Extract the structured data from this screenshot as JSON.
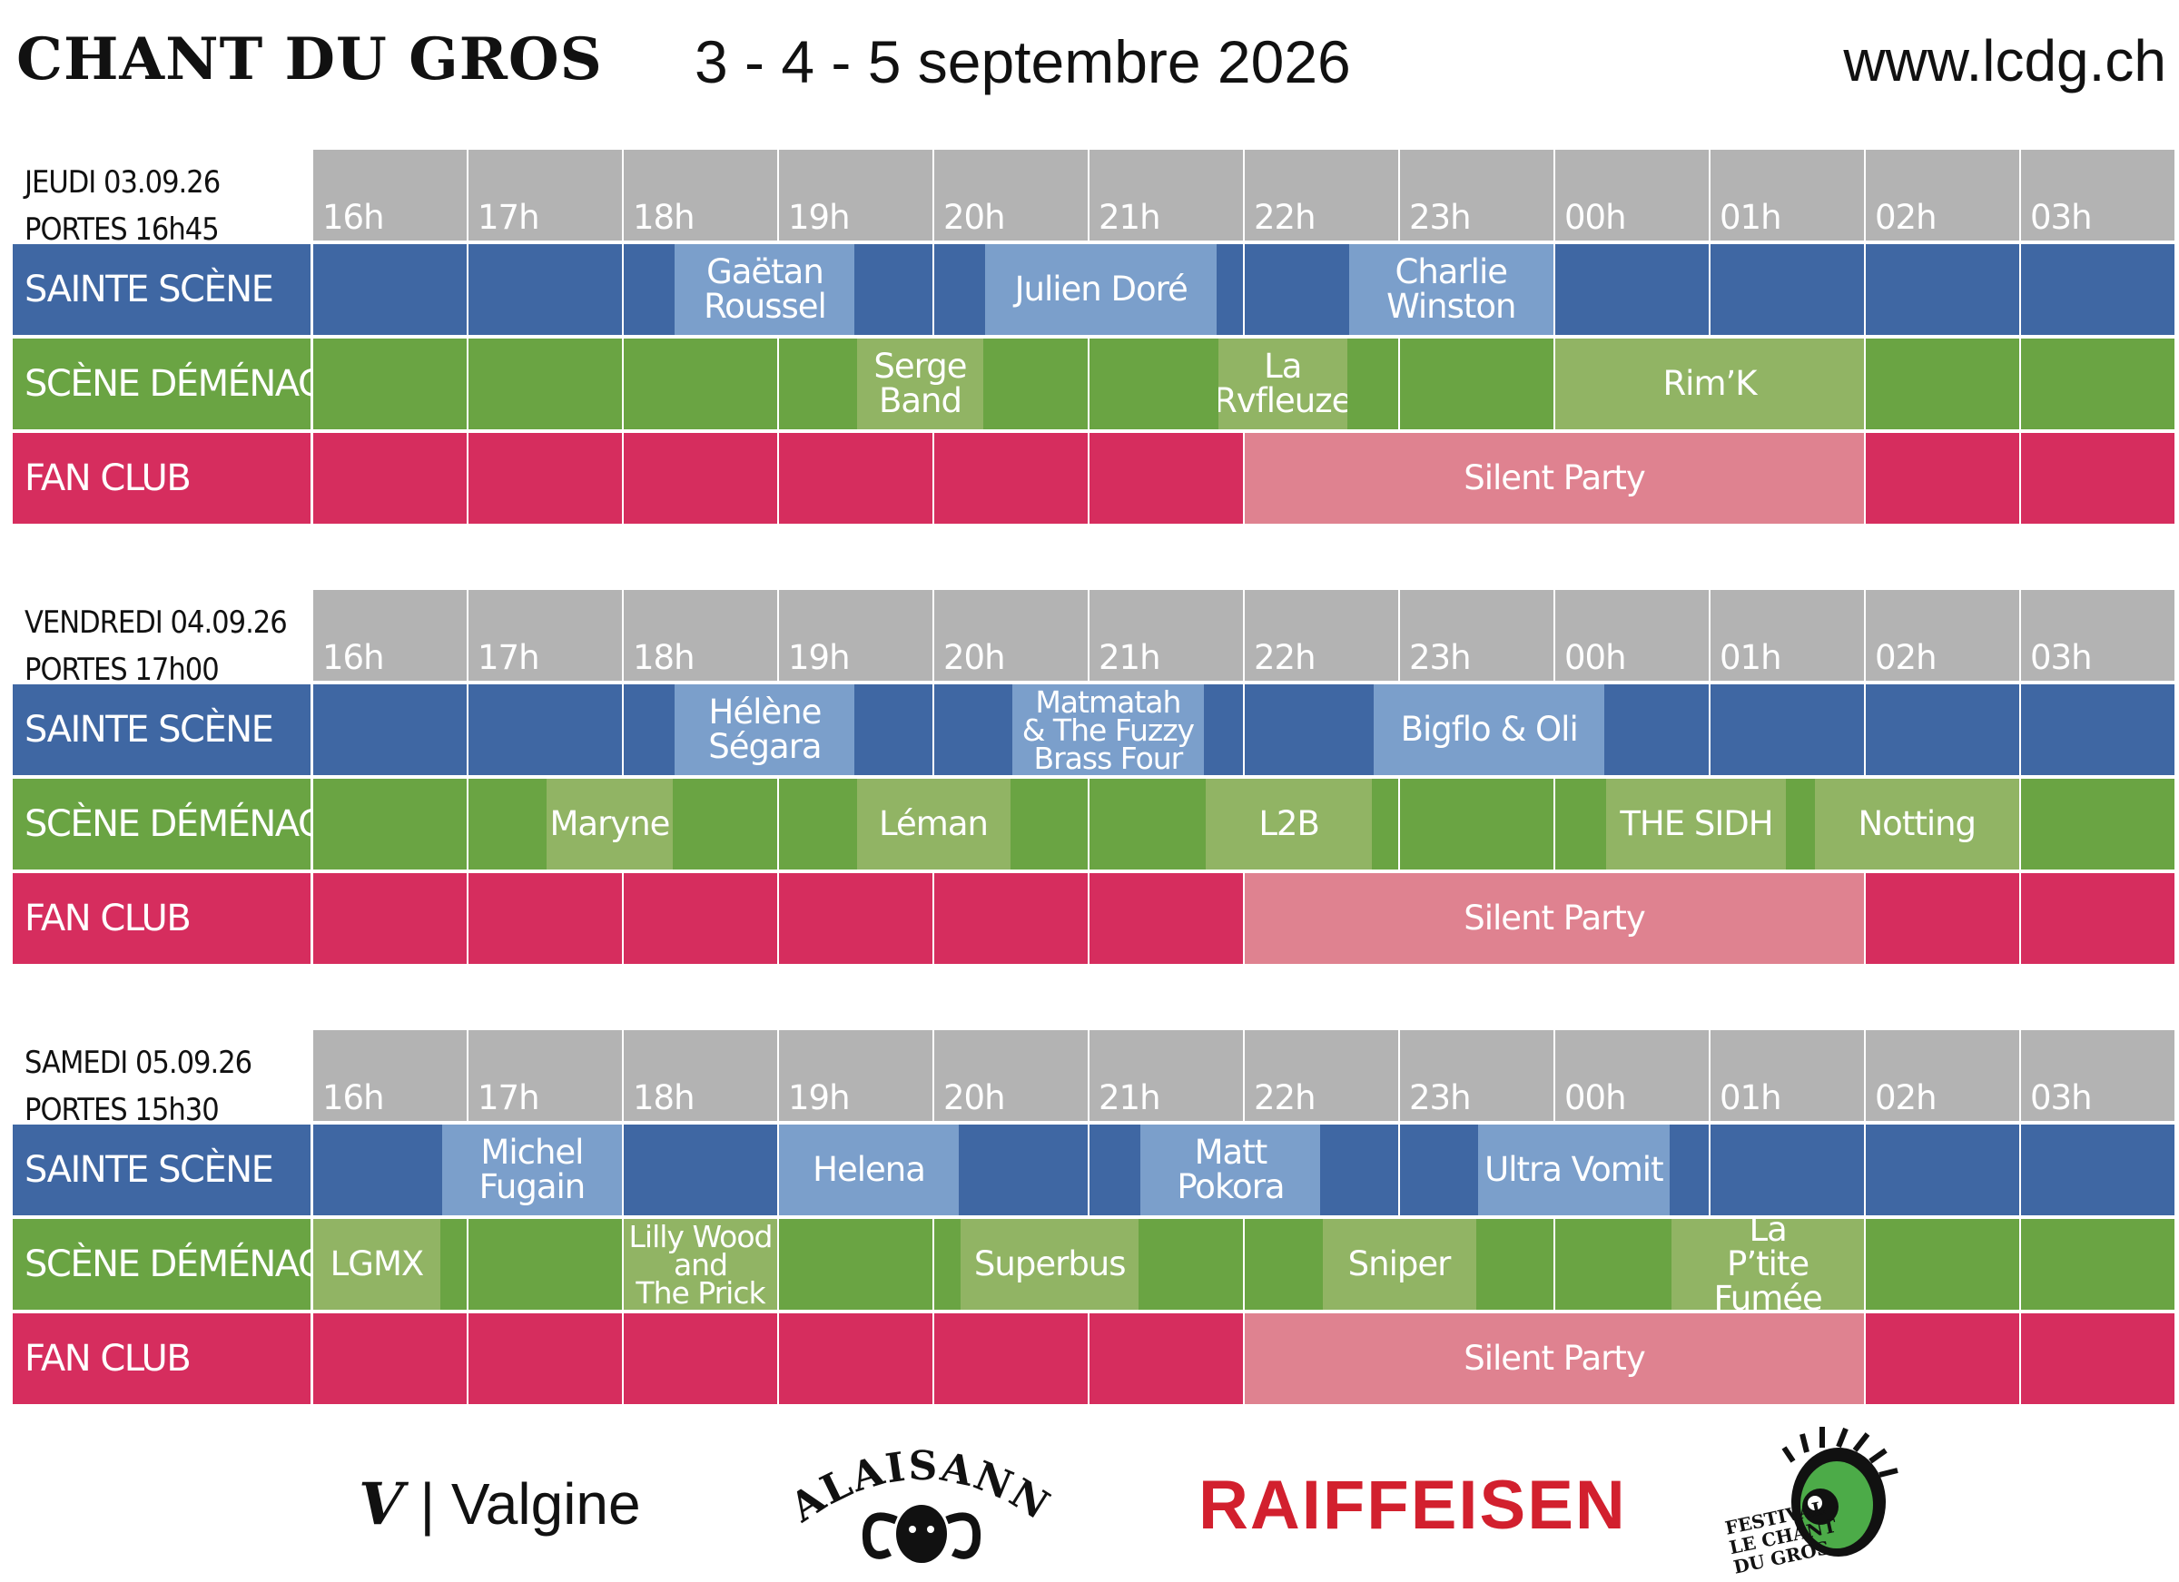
{
  "header": {
    "title": "CHANT DU GROS",
    "dates": "3 - 4 - 5 septembre 2026",
    "url": "www.lcdg.ch"
  },
  "hours": [
    "16h",
    "17h",
    "18h",
    "19h",
    "20h",
    "21h",
    "22h",
    "23h",
    "00h",
    "01h",
    "02h",
    "03h"
  ],
  "stages": {
    "sainte": "SAINTE SCÈNE",
    "demenage": "SCÈNE DÉMÉNAGE",
    "fanclub": "FAN CLUB"
  },
  "colors": {
    "sainte_base": "#3f67a3",
    "sainte_event": "#7b9fcb",
    "demenage_base": "#6aa443",
    "demenage_event": "#91b464",
    "fanclub_base": "#d62d5e",
    "fanclub_event": "#df8290",
    "hour_header": "#b3b3b3"
  },
  "days": [
    {
      "day": "JEUDI 03.09.26",
      "doors": "PORTES 16h45",
      "sainte": [
        {
          "name": "Gaëtan\nRoussel",
          "start": 2.33,
          "end": 3.5
        },
        {
          "name": "Julien Doré",
          "start": 4.33,
          "end": 5.83
        },
        {
          "name": "Charlie\nWinston",
          "start": 6.67,
          "end": 8.0
        }
      ],
      "demenage": [
        {
          "name": "Serge\nBand",
          "start": 3.5,
          "end": 4.33
        },
        {
          "name": "La\nRvfleuze",
          "start": 5.83,
          "end": 6.67
        },
        {
          "name": "Rim’K",
          "start": 8.0,
          "end": 10.0
        }
      ],
      "fanclub": [
        {
          "name": "Silent Party",
          "start": 6.0,
          "end": 10.0
        }
      ]
    },
    {
      "day": "VENDREDI 04.09.26",
      "doors": "PORTES 17h00",
      "sainte": [
        {
          "name": "Hélène\nSégara",
          "start": 2.33,
          "end": 3.5
        },
        {
          "name": "Matmatah\n& The Fuzzy\nBrass Four",
          "start": 4.5,
          "end": 5.75,
          "small": true
        },
        {
          "name": "Bigflo & Oli",
          "start": 6.83,
          "end": 8.33
        }
      ],
      "demenage": [
        {
          "name": "Maryne",
          "start": 1.5,
          "end": 2.33
        },
        {
          "name": "Léman",
          "start": 3.5,
          "end": 4.5
        },
        {
          "name": "L2B",
          "start": 5.75,
          "end": 6.83
        },
        {
          "name": "THE SIDH",
          "start": 8.33,
          "end": 9.5
        },
        {
          "name": "Notting",
          "start": 9.67,
          "end": 11.0
        }
      ],
      "fanclub": [
        {
          "name": "Silent Party",
          "start": 6.0,
          "end": 10.0
        }
      ]
    },
    {
      "day": "SAMEDI 05.09.26",
      "doors": "PORTES 15h30",
      "sainte": [
        {
          "name": "Michel\nFugain",
          "start": 0.83,
          "end": 2.0
        },
        {
          "name": "Helena",
          "start": 3.0,
          "end": 4.17
        },
        {
          "name": "Matt\nPokora",
          "start": 5.33,
          "end": 6.5
        },
        {
          "name": "Ultra Vomit",
          "start": 7.5,
          "end": 8.75
        }
      ],
      "demenage": [
        {
          "name": "LGMX",
          "start": 0.0,
          "end": 0.83
        },
        {
          "name": "Lilly Wood\nand\nThe Prick",
          "start": 2.0,
          "end": 3.0,
          "small": true
        },
        {
          "name": "Superbus",
          "start": 4.17,
          "end": 5.33
        },
        {
          "name": "Sniper",
          "start": 6.5,
          "end": 7.5
        },
        {
          "name": "La\nP’tite Fumée",
          "start": 8.75,
          "end": 10.0
        }
      ],
      "fanclub": [
        {
          "name": "Silent Party",
          "start": 6.0,
          "end": 10.0
        }
      ]
    }
  ],
  "sponsors": {
    "valgine": "Valgine",
    "valgine_mark": "V",
    "valaisanne": "VALAISANNE",
    "raiffeisen": "RAIFFEISEN",
    "lcdg_line1": "FESTIVAL",
    "lcdg_line2": "LE CHANT",
    "lcdg_line3": "DU GROS"
  }
}
